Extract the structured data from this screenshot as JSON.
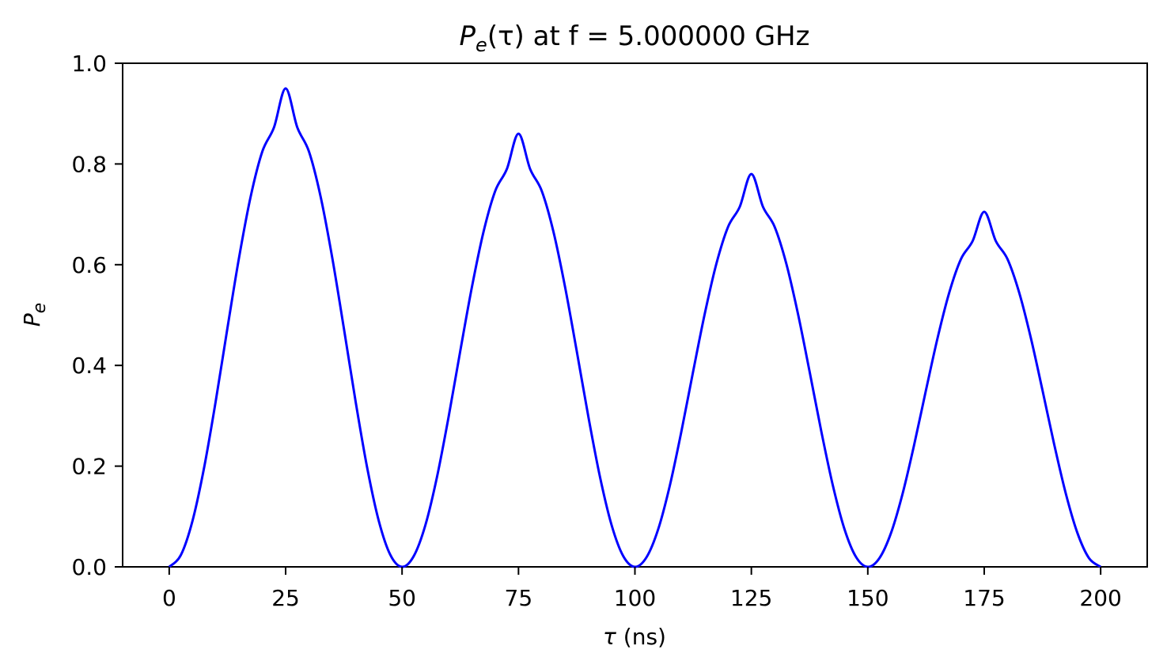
{
  "chart_data": {
    "type": "line",
    "title": {
      "symbol": "P",
      "subscript": "e",
      "argument": "(τ)",
      "rest": " at f = 5.000000 GHz"
    },
    "xlabel": {
      "symbol": "τ",
      "rest": " (ns)"
    },
    "ylabel": {
      "symbol": "P",
      "subscript": "e"
    },
    "xlim": [
      -10,
      210
    ],
    "ylim": [
      0.0,
      1.0
    ],
    "xticks": [
      0,
      25,
      50,
      75,
      100,
      125,
      150,
      175,
      200
    ],
    "xtick_labels": [
      "0",
      "25",
      "50",
      "75",
      "100",
      "125",
      "150",
      "175",
      "200"
    ],
    "yticks": [
      0.0,
      0.2,
      0.4,
      0.6,
      0.8,
      1.0
    ],
    "ytick_labels": [
      "0.0",
      "0.2",
      "0.4",
      "0.6",
      "0.8",
      "1.0"
    ],
    "grid": false,
    "legend": "none",
    "series": [
      {
        "color": "#0000ff",
        "x": [
          0,
          2.5,
          5,
          7.5,
          10,
          12.5,
          15,
          17.5,
          20,
          22.5,
          25,
          27.5,
          30,
          32.5,
          35,
          37.5,
          40,
          42.5,
          45,
          47.5,
          50,
          52.5,
          55,
          57.5,
          60,
          62.5,
          65,
          67.5,
          70,
          72.5,
          75,
          77.5,
          80,
          82.5,
          85,
          87.5,
          90,
          92.5,
          95,
          97.5,
          100,
          102.5,
          105,
          107.5,
          110,
          112.5,
          115,
          117.5,
          120,
          122.5,
          125,
          127.5,
          130,
          132.5,
          135,
          137.5,
          140,
          142.5,
          145,
          147.5,
          150,
          152.5,
          155,
          157.5,
          160,
          162.5,
          165,
          167.5,
          170,
          172.5,
          175,
          177.5,
          180,
          182.5,
          185,
          187.5,
          190,
          192.5,
          195,
          197.5,
          200
        ],
        "y": [
          0.0,
          0.0234,
          0.0913,
          0.1973,
          0.3296,
          0.4739,
          0.6142,
          0.7356,
          0.8249,
          0.8727,
          0.95,
          0.8727,
          0.8249,
          0.7356,
          0.6142,
          0.4739,
          0.3296,
          0.1973,
          0.0913,
          0.0234,
          0.0,
          0.0212,
          0.0826,
          0.1785,
          0.2982,
          0.4288,
          0.5557,
          0.6656,
          0.7463,
          0.79,
          0.86,
          0.79,
          0.7463,
          0.6656,
          0.5557,
          0.4288,
          0.2982,
          0.1785,
          0.0826,
          0.0212,
          0.0,
          0.0192,
          0.0748,
          0.1616,
          0.2699,
          0.388,
          0.5028,
          0.6023,
          0.6752,
          0.7148,
          0.78,
          0.7148,
          0.6752,
          0.6023,
          0.5028,
          0.388,
          0.2699,
          0.1616,
          0.0748,
          0.0192,
          0.0,
          0.0173,
          0.0676,
          0.1462,
          0.2442,
          0.3511,
          0.455,
          0.5449,
          0.6111,
          0.6468,
          0.705,
          0.6468,
          0.6111,
          0.5449,
          0.455,
          0.3511,
          0.2442,
          0.1462,
          0.0676,
          0.0173,
          0.0
        ]
      }
    ]
  }
}
